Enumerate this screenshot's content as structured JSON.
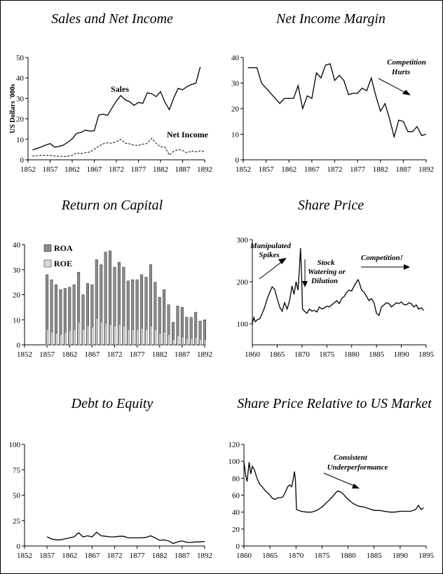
{
  "chart_data": [
    {
      "type": "line",
      "title": "Sales and Net Income",
      "ylabel": "US Dollars '000s",
      "xlim": [
        1852,
        1892
      ],
      "ylim": [
        0,
        50
      ],
      "x_ticks": [
        "1852",
        "1857",
        "1862",
        "1867",
        "1872",
        "1877",
        "1882",
        "1887",
        "1892"
      ],
      "y_ticks": [
        "0",
        "10",
        "20",
        "30",
        "40",
        "50"
      ],
      "series": [
        {
          "name": "Sales",
          "style": "solid",
          "x": [
            1853,
            1854,
            1855,
            1856,
            1857,
            1858,
            1859,
            1860,
            1861,
            1862,
            1863,
            1864,
            1865,
            1866,
            1867,
            1868,
            1869,
            1870,
            1871,
            1872,
            1873,
            1874,
            1875,
            1876,
            1877,
            1878,
            1879,
            1880,
            1881,
            1882,
            1883,
            1884,
            1885,
            1886,
            1887,
            1888,
            1889,
            1890,
            1891,
            1892
          ],
          "y": [
            4.8,
            5.5,
            6.3,
            7.2,
            7.9,
            6.2,
            6.5,
            7.2,
            8.6,
            10.2,
            12.9,
            13.4,
            14.5,
            14.0,
            14.2,
            21.8,
            22.3,
            21.7,
            25.3,
            28.7,
            31.4,
            29.3,
            28.4,
            26.6,
            28.0,
            27.6,
            32.7,
            32.3,
            30.9,
            33.3,
            28.2,
            24.5,
            30.3,
            34.9,
            34.2,
            35.8,
            36.8,
            37.4,
            45.3,
            null
          ]
        },
        {
          "name": "Net Income",
          "style": "dashed",
          "x": [
            1853,
            1854,
            1855,
            1856,
            1857,
            1858,
            1859,
            1860,
            1861,
            1862,
            1863,
            1864,
            1865,
            1866,
            1867,
            1868,
            1869,
            1870,
            1871,
            1872,
            1873,
            1874,
            1875,
            1876,
            1877,
            1878,
            1879,
            1880,
            1881,
            1882,
            1883,
            1884,
            1885,
            1886,
            1887,
            1888,
            1889,
            1890,
            1891,
            1892
          ],
          "y": [
            1.8,
            2.0,
            2.2,
            2.2,
            2.2,
            1.9,
            1.7,
            1.6,
            1.8,
            2.2,
            3.3,
            3.0,
            3.5,
            3.8,
            5.2,
            6.6,
            7.8,
            8.3,
            8.1,
            8.8,
            10.0,
            8.2,
            7.8,
            7.1,
            7.1,
            7.6,
            8.0,
            10.5,
            8.1,
            6.3,
            6.2,
            2.3,
            4.2,
            5.0,
            4.6,
            3.4,
            4.3,
            3.9,
            4.4,
            4.0
          ]
        }
      ],
      "labels": [
        "Sales",
        "Net Income"
      ]
    },
    {
      "type": "line",
      "title": "Net Income Margin",
      "xlim": [
        1852,
        1892
      ],
      "ylim": [
        0,
        40
      ],
      "x_ticks": [
        "1852",
        "1857",
        "1862",
        "1867",
        "1872",
        "1877",
        "1882",
        "1887",
        "1892"
      ],
      "y_ticks": [
        "0",
        "10",
        "20",
        "30",
        "40"
      ],
      "annotations": [
        {
          "text": "Competition"
        },
        {
          "text": "Hurts"
        }
      ],
      "series": [
        {
          "style": "solid",
          "x": [
            1853,
            1854,
            1855,
            1856,
            1857,
            1858,
            1859,
            1860,
            1861,
            1862,
            1863,
            1864,
            1865,
            1866,
            1867,
            1868,
            1869,
            1870,
            1871,
            1872,
            1873,
            1874,
            1875,
            1876,
            1877,
            1878,
            1879,
            1880,
            1881,
            1882,
            1883,
            1884,
            1885,
            1886,
            1887,
            1888,
            1889,
            1890,
            1891,
            1892
          ],
          "y": [
            36,
            36,
            36,
            30,
            28,
            26,
            24,
            22,
            24,
            24,
            24,
            29,
            20,
            25,
            24,
            34,
            32,
            37,
            37.5,
            31,
            33,
            31,
            25.5,
            26,
            26,
            28,
            27,
            32,
            25,
            19,
            22,
            16,
            9,
            15.5,
            15,
            11,
            11,
            13,
            9.5,
            10
          ]
        }
      ]
    },
    {
      "type": "bar",
      "title": "Return on Capital",
      "xlim": [
        1852,
        1892
      ],
      "ylim": [
        0,
        40
      ],
      "x_ticks": [
        "1852",
        "1857",
        "1862",
        "1867",
        "1872",
        "1877",
        "1882",
        "1887",
        "1892"
      ],
      "y_ticks": [
        "0",
        "10",
        "20",
        "30",
        "40"
      ],
      "legend": "top-left",
      "x": [
        1857,
        1858,
        1859,
        1860,
        1861,
        1862,
        1863,
        1864,
        1865,
        1866,
        1867,
        1868,
        1869,
        1870,
        1871,
        1872,
        1873,
        1874,
        1875,
        1876,
        1877,
        1878,
        1879,
        1880,
        1881,
        1882,
        1883,
        1884,
        1885,
        1886,
        1887,
        1888,
        1889,
        1890,
        1891,
        1892
      ],
      "series": [
        {
          "name": "ROA",
          "values": [
            28,
            26,
            24,
            22,
            22.5,
            23,
            24,
            29,
            20,
            24.5,
            24,
            34,
            32,
            37,
            37.5,
            31,
            33,
            31,
            25.5,
            26,
            26,
            28,
            27,
            32,
            25,
            19,
            22,
            16,
            9,
            15.5,
            15,
            11,
            11,
            13,
            9.5,
            10
          ]
        },
        {
          "name": "ROE",
          "values": [
            6,
            5,
            4.5,
            4,
            5,
            5.5,
            6,
            9,
            6,
            7.5,
            7,
            10.5,
            9,
            8.5,
            8,
            7.5,
            8,
            7.5,
            6,
            6,
            6,
            6.5,
            6,
            7.5,
            6,
            4.5,
            5,
            4,
            2,
            3.5,
            3,
            2.5,
            2.5,
            3,
            2,
            2
          ]
        }
      ]
    },
    {
      "type": "line",
      "title": "Share Price",
      "xlim": [
        1860,
        1895
      ],
      "ylim": [
        50,
        300
      ],
      "x_ticks": [
        "1860",
        "1865",
        "1870",
        "1875",
        "1880",
        "1885",
        "1890",
        "1895"
      ],
      "y_ticks": [
        "100",
        "200",
        "300"
      ],
      "annotations": [
        {
          "text": "Manipulated"
        },
        {
          "text": "Spikes"
        },
        {
          "text": "Stock"
        },
        {
          "text": "Watering or"
        },
        {
          "text": "Dilution"
        },
        {
          "text": "Competition!"
        }
      ],
      "series": [
        {
          "style": "solid",
          "x": [
            1860,
            1860.3,
            1860.6,
            1861,
            1861.5,
            1862,
            1862.5,
            1863,
            1863.5,
            1864,
            1864.5,
            1865,
            1865.5,
            1866,
            1866.5,
            1867,
            1867.5,
            1868,
            1868.4,
            1868.8,
            1869.2,
            1869.5,
            1869.7,
            1869.9,
            1870.1,
            1870.5,
            1871,
            1871.5,
            1872,
            1872.5,
            1873,
            1873.5,
            1874,
            1874.5,
            1875,
            1875.5,
            1876,
            1876.5,
            1877,
            1877.5,
            1878,
            1878.5,
            1879,
            1879.5,
            1880,
            1880.5,
            1881,
            1881.3,
            1881.6,
            1882,
            1882.5,
            1883,
            1883.5,
            1884,
            1884.5,
            1885,
            1885.5,
            1886,
            1886.5,
            1887,
            1887.5,
            1888,
            1888.5,
            1889,
            1889.5,
            1890,
            1890.5,
            1891,
            1891.5,
            1892,
            1892.5,
            1893,
            1893.5,
            1894,
            1894.5
          ],
          "y": [
            100,
            115,
            105,
            110,
            112,
            125,
            140,
            160,
            175,
            188,
            182,
            160,
            140,
            130,
            150,
            135,
            155,
            190,
            170,
            200,
            180,
            235,
            280,
            225,
            135,
            130,
            125,
            135,
            130,
            132,
            128,
            140,
            135,
            138,
            142,
            140,
            145,
            150,
            155,
            148,
            160,
            165,
            175,
            180,
            178,
            190,
            200,
            205,
            195,
            180,
            175,
            165,
            155,
            160,
            150,
            125,
            120,
            140,
            145,
            150,
            148,
            140,
            145,
            150,
            148,
            152,
            146,
            145,
            150,
            148,
            140,
            145,
            135,
            138,
            132
          ]
        }
      ]
    },
    {
      "type": "line",
      "title": "Debt to Equity",
      "xlim": [
        1852,
        1892
      ],
      "ylim": [
        0,
        100
      ],
      "x_ticks": [
        "1852",
        "1857",
        "1862",
        "1867",
        "1872",
        "1877",
        "1882",
        "1887",
        "1892"
      ],
      "y_ticks": [
        "0",
        "25",
        "50",
        "75",
        "100"
      ],
      "series": [
        {
          "style": "solid",
          "x": [
            1857,
            1858,
            1859,
            1860,
            1861,
            1862,
            1863,
            1864,
            1865,
            1866,
            1867,
            1868,
            1869,
            1870,
            1871,
            1872,
            1873,
            1874,
            1875,
            1876,
            1877,
            1878,
            1879,
            1880,
            1881,
            1882,
            1883,
            1884,
            1885,
            1886,
            1887,
            1888,
            1889,
            1890,
            1891,
            1892
          ],
          "y": [
            9,
            7,
            6,
            6,
            7,
            8,
            9,
            13,
            9,
            10,
            9,
            13.5,
            10,
            9.5,
            9,
            9,
            9.5,
            9.5,
            8,
            8,
            8,
            8,
            8.5,
            10,
            8,
            5.5,
            6,
            5,
            2.5,
            4,
            5,
            3.5,
            3.5,
            4,
            4,
            4.5
          ]
        }
      ]
    },
    {
      "type": "line",
      "title": "Share Price Relative to US Market",
      "xlim": [
        1860,
        1895
      ],
      "ylim": [
        0,
        120
      ],
      "x_ticks": [
        "1860",
        "1865",
        "1870",
        "1875",
        "1880",
        "1885",
        "1890",
        "1895"
      ],
      "y_ticks": [
        "0",
        "20",
        "40",
        "60",
        "80",
        "100",
        "120"
      ],
      "annotations": [
        {
          "text": "Consistent"
        },
        {
          "text": "Underperformance"
        }
      ],
      "series": [
        {
          "style": "solid",
          "x": [
            1860,
            1860.3,
            1860.6,
            1861,
            1861.3,
            1861.6,
            1862,
            1862.5,
            1863,
            1863.5,
            1864,
            1864.5,
            1865,
            1865.5,
            1866,
            1866.5,
            1867,
            1867.5,
            1868,
            1868.4,
            1868.8,
            1869.2,
            1869.5,
            1869.7,
            1869.9,
            1870.1,
            1870.5,
            1871,
            1872,
            1873,
            1874,
            1875,
            1876,
            1877,
            1877.5,
            1878,
            1878.5,
            1879,
            1879.5,
            1880,
            1881,
            1882,
            1883,
            1884,
            1885,
            1886,
            1887,
            1888,
            1889,
            1890,
            1891,
            1892,
            1893,
            1893.5,
            1894,
            1894.5
          ],
          "y": [
            100,
            85,
            76,
            99,
            85,
            94,
            90,
            80,
            73,
            70,
            66,
            63,
            60,
            56,
            55,
            57,
            57,
            58,
            64,
            70,
            72,
            70,
            80,
            88,
            78,
            43,
            42,
            41,
            40,
            40,
            42,
            46,
            52,
            58,
            62,
            65,
            64,
            62,
            58,
            55,
            50,
            47,
            46,
            44,
            42,
            42,
            41,
            40,
            40,
            41,
            41,
            41,
            43,
            48,
            43,
            45
          ]
        }
      ]
    }
  ]
}
